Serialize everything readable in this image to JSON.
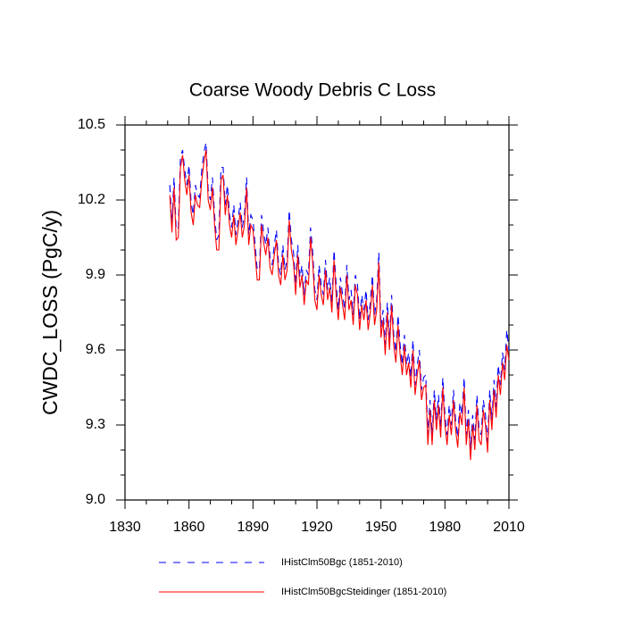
{
  "chart_data": {
    "type": "line",
    "title": "Coarse Woody Debris C Loss",
    "y_label": "CWDC_LOSS  (PgC/y)",
    "xlim": [
      1830,
      2010
    ],
    "xticks": [
      1830,
      1860,
      1890,
      1920,
      1950,
      1980,
      2010
    ],
    "xminorticks": [
      1840,
      1850,
      1870,
      1880,
      1900,
      1910,
      1930,
      1940,
      1960,
      1970,
      1990,
      2000
    ],
    "ylim": [
      9.0,
      10.5
    ],
    "yticks": [
      {
        "value": 9.0,
        "label": "9.0"
      },
      9.3,
      9.6,
      9.9,
      10.2,
      10.5
    ],
    "yminorticks": [
      9.1,
      9.2,
      9.4,
      9.5,
      9.7,
      9.8,
      10.0,
      10.1,
      10.3,
      10.4
    ],
    "x": [
      1851,
      1852,
      1853,
      1854,
      1855,
      1856,
      1857,
      1858,
      1859,
      1860,
      1861,
      1862,
      1863,
      1864,
      1865,
      1866,
      1867,
      1868,
      1869,
      1870,
      1871,
      1872,
      1873,
      1874,
      1875,
      1876,
      1877,
      1878,
      1879,
      1880,
      1881,
      1882,
      1883,
      1884,
      1885,
      1886,
      1887,
      1888,
      1889,
      1890,
      1891,
      1892,
      1893,
      1894,
      1895,
      1896,
      1897,
      1898,
      1899,
      1900,
      1901,
      1902,
      1903,
      1904,
      1905,
      1906,
      1907,
      1908,
      1909,
      1910,
      1911,
      1912,
      1913,
      1914,
      1915,
      1916,
      1917,
      1918,
      1919,
      1920,
      1921,
      1922,
      1923,
      1924,
      1925,
      1926,
      1927,
      1928,
      1929,
      1930,
      1931,
      1932,
      1933,
      1934,
      1935,
      1936,
      1937,
      1938,
      1939,
      1940,
      1941,
      1942,
      1943,
      1944,
      1945,
      1946,
      1947,
      1948,
      1949,
      1950,
      1951,
      1952,
      1953,
      1954,
      1955,
      1956,
      1957,
      1958,
      1959,
      1960,
      1961,
      1962,
      1963,
      1964,
      1965,
      1966,
      1967,
      1968,
      1969,
      1970,
      1971,
      1972,
      1973,
      1974,
      1975,
      1976,
      1977,
      1978,
      1979,
      1980,
      1981,
      1982,
      1983,
      1984,
      1985,
      1986,
      1987,
      1988,
      1989,
      1990,
      1991,
      1992,
      1993,
      1994,
      1995,
      1996,
      1997,
      1998,
      1999,
      2000,
      2001,
      2002,
      2003,
      2004,
      2005,
      2006,
      2007,
      2008,
      2009,
      2010
    ],
    "series": [
      {
        "name": "IHistClm50Bgc (1851-2010)",
        "color": "#0000ff",
        "dash": true,
        "values": [
          10.26,
          10.11,
          10.29,
          10.08,
          10.09,
          10.37,
          10.4,
          10.32,
          10.26,
          10.34,
          10.19,
          10.14,
          10.26,
          10.22,
          10.21,
          10.32,
          10.39,
          10.43,
          10.24,
          10.2,
          10.29,
          10.14,
          10.04,
          10.06,
          10.33,
          10.33,
          10.18,
          10.26,
          10.14,
          10.09,
          10.18,
          10.06,
          10.12,
          10.19,
          10.09,
          10.14,
          10.29,
          10.06,
          10.14,
          10.12,
          10.02,
          9.92,
          9.92,
          10.14,
          10.07,
          10.02,
          10.09,
          9.97,
          9.94,
          10.02,
          10.08,
          9.94,
          9.9,
          10.02,
          9.92,
          9.96,
          10.16,
          10.04,
          9.99,
          9.86,
          10.02,
          9.89,
          9.94,
          9.82,
          9.92,
          9.9,
          10.09,
          9.99,
          9.84,
          9.8,
          9.94,
          9.86,
          9.82,
          9.96,
          9.84,
          9.89,
          9.79,
          10.0,
          9.86,
          9.76,
          9.89,
          9.82,
          9.76,
          9.94,
          9.8,
          9.84,
          9.74,
          9.9,
          9.86,
          9.72,
          9.82,
          9.76,
          9.84,
          9.72,
          9.79,
          9.9,
          9.74,
          9.8,
          9.99,
          9.69,
          9.76,
          9.62,
          9.79,
          9.64,
          9.82,
          9.66,
          9.59,
          9.74,
          9.62,
          9.54,
          9.66,
          9.54,
          9.59,
          9.49,
          9.64,
          9.46,
          9.54,
          9.6,
          9.44,
          9.49,
          9.5,
          9.26,
          9.4,
          9.26,
          9.44,
          9.32,
          9.42,
          9.29,
          9.49,
          9.34,
          9.26,
          9.38,
          9.3,
          9.44,
          9.32,
          9.25,
          9.39,
          9.34,
          9.49,
          9.26,
          9.36,
          9.2,
          9.34,
          9.24,
          9.42,
          9.28,
          9.26,
          9.4,
          9.34,
          9.23,
          9.44,
          9.32,
          9.48,
          9.37,
          9.54,
          9.46,
          9.59,
          9.52,
          9.68,
          9.6
        ]
      },
      {
        "name": "IHistClm50BgcSteidinger (1851-2010)",
        "color": "#ff0000",
        "dash": false,
        "values": [
          10.22,
          10.07,
          10.25,
          10.04,
          10.05,
          10.33,
          10.38,
          10.28,
          10.22,
          10.3,
          10.15,
          10.1,
          10.22,
          10.18,
          10.17,
          10.28,
          10.35,
          10.4,
          10.2,
          10.16,
          10.25,
          10.1,
          10.0,
          10.0,
          10.28,
          10.3,
          10.14,
          10.22,
          10.1,
          10.05,
          10.14,
          10.02,
          10.08,
          10.15,
          10.05,
          10.1,
          10.25,
          10.02,
          10.1,
          10.08,
          9.98,
          9.88,
          9.88,
          10.1,
          10.03,
          9.98,
          10.05,
          9.93,
          9.9,
          9.98,
          10.04,
          9.9,
          9.86,
          9.98,
          9.88,
          9.92,
          10.12,
          10.0,
          9.95,
          9.82,
          9.98,
          9.85,
          9.9,
          9.78,
          9.88,
          9.86,
          10.05,
          9.95,
          9.8,
          9.76,
          9.9,
          9.82,
          9.78,
          9.92,
          9.8,
          9.85,
          9.75,
          9.96,
          9.82,
          9.72,
          9.85,
          9.78,
          9.72,
          9.9,
          9.76,
          9.8,
          9.7,
          9.86,
          9.82,
          9.68,
          9.78,
          9.72,
          9.8,
          9.68,
          9.75,
          9.86,
          9.7,
          9.76,
          9.95,
          9.65,
          9.72,
          9.58,
          9.75,
          9.6,
          9.78,
          9.62,
          9.55,
          9.7,
          9.58,
          9.5,
          9.62,
          9.5,
          9.55,
          9.45,
          9.6,
          9.42,
          9.5,
          9.56,
          9.4,
          9.45,
          9.46,
          9.22,
          9.36,
          9.22,
          9.4,
          9.28,
          9.38,
          9.25,
          9.45,
          9.3,
          9.22,
          9.34,
          9.26,
          9.4,
          9.28,
          9.21,
          9.35,
          9.3,
          9.45,
          9.22,
          9.32,
          9.16,
          9.3,
          9.2,
          9.38,
          9.24,
          9.22,
          9.36,
          9.3,
          9.19,
          9.4,
          9.28,
          9.44,
          9.33,
          9.5,
          9.42,
          9.55,
          9.48,
          9.62,
          9.56
        ]
      }
    ]
  }
}
